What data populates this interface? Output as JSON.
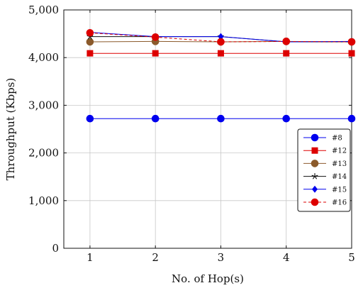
{
  "chart_data": {
    "type": "line",
    "title": "",
    "xlabel": "No. of Hop(s)",
    "ylabel": "Throughput (Kbps)",
    "x": [
      1,
      2,
      3,
      4,
      5
    ],
    "x_tick_labels": [
      "1",
      "2",
      "3",
      "4",
      "5"
    ],
    "xlim": [
      0.6,
      5.0
    ],
    "ylim": [
      0,
      5000
    ],
    "y_ticks": [
      0,
      1000,
      2000,
      3000,
      4000,
      5000
    ],
    "y_tick_labels": [
      "0",
      "1,000",
      "2,000",
      "3,000",
      "4,000",
      "5,000"
    ],
    "grid": true,
    "legend_position": "right",
    "series": [
      {
        "name": "#8",
        "values": [
          2720,
          2720,
          2720,
          2720,
          2720
        ],
        "color": "#0000ee",
        "marker": "circle",
        "dash": "solid"
      },
      {
        "name": "#12",
        "values": [
          4090,
          4090,
          4090,
          4090,
          4090
        ],
        "color": "#dd0000",
        "marker": "square",
        "dash": "solid"
      },
      {
        "name": "#13",
        "values": [
          4330,
          4340,
          4330,
          4340,
          4330
        ],
        "color": "#8b5a2b",
        "marker": "circle",
        "dash": "solid"
      },
      {
        "name": "#14",
        "values": [
          4440,
          4440,
          4440,
          4330,
          4330
        ],
        "color": "#111111",
        "marker": "star",
        "dash": "solid"
      },
      {
        "name": "#15",
        "values": [
          4530,
          4440,
          4440,
          4330,
          4340
        ],
        "color": "#0000ee",
        "marker": "diamond",
        "dash": "solid"
      },
      {
        "name": "#16",
        "values": [
          4520,
          4430,
          4330,
          4340,
          4330
        ],
        "color": "#dd0000",
        "marker": "circle",
        "dash": "dashed"
      }
    ]
  }
}
